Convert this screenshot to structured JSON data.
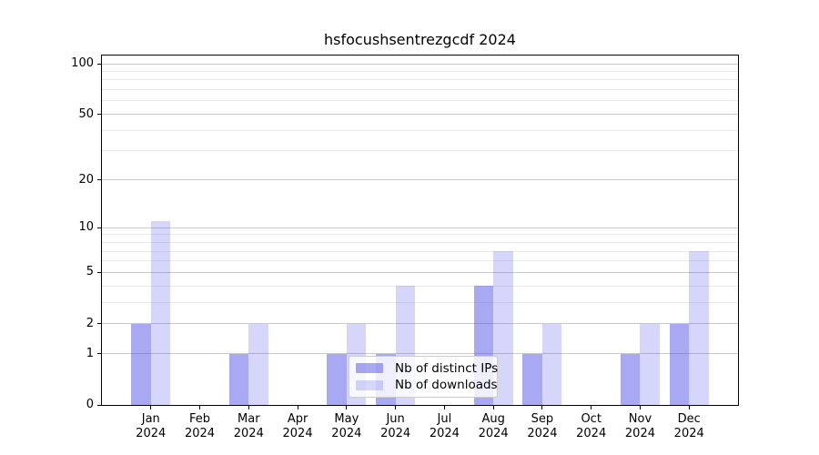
{
  "chart_data": {
    "type": "bar",
    "title": "hsfocushsentrezgcdf 2024",
    "categories": [
      "Jan\n2024",
      "Feb\n2024",
      "Mar\n2024",
      "Apr\n2024",
      "May\n2024",
      "Jun\n2024",
      "Jul\n2024",
      "Aug\n2024",
      "Sep\n2024",
      "Oct\n2024",
      "Nov\n2024",
      "Dec\n2024"
    ],
    "series": [
      {
        "name": "Nb of distinct IPs",
        "color_rgba": "rgba(81,81,231,0.5)",
        "color_hex_on_white": "#a8a8f3",
        "values": [
          2,
          0,
          1,
          0,
          1,
          1,
          0,
          4,
          1,
          0,
          1,
          2
        ]
      },
      {
        "name": "Nb of downloads",
        "color_rgba": "rgba(91,91,235,0.25)",
        "color_hex_on_white": "#d6d6fa",
        "values": [
          11,
          0,
          2,
          0,
          2,
          4,
          0,
          7,
          2,
          0,
          2,
          7
        ]
      }
    ],
    "xlabel": "",
    "ylabel": "",
    "ylim": [
      0,
      100
    ],
    "y_scale": "log1p",
    "y_major_ticks": [
      0,
      1,
      2,
      5,
      10,
      20,
      50,
      100
    ],
    "y_minor_gridlines": [
      3,
      4,
      6,
      7,
      8,
      9,
      30,
      40,
      60,
      70,
      80,
      90
    ],
    "grid": true,
    "legend_position": "lower center",
    "axis_color": "#000000",
    "grid_major_color": "#c9c9c9",
    "grid_minor_color": "#e9e9e9",
    "background_color": "#ffffff"
  }
}
